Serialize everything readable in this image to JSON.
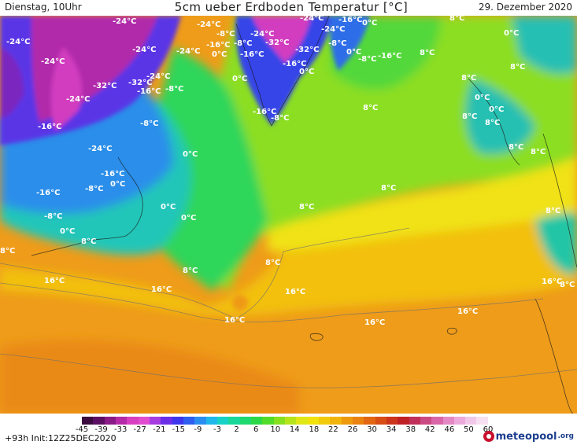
{
  "header": {
    "day_time": "Dienstag, 10Uhr",
    "title": "5cm ueber Erdboden Temperatur [°C]",
    "date": "29. Dezember 2020"
  },
  "map": {
    "labels": [
      {
        "id": "l1",
        "text": "-24°C"
      },
      {
        "id": "l2",
        "text": "-24°C"
      },
      {
        "id": "l3",
        "text": "-24°C"
      },
      {
        "id": "l4",
        "text": "-24°C"
      },
      {
        "id": "l5",
        "text": "-24°C"
      },
      {
        "id": "l6",
        "text": "-24°C"
      },
      {
        "id": "l7",
        "text": "-24°C"
      },
      {
        "id": "l8",
        "text": "-24°C"
      },
      {
        "id": "l9",
        "text": "-24°C"
      },
      {
        "id": "l10",
        "text": "-24°C"
      },
      {
        "id": "l11",
        "text": "-24°C"
      },
      {
        "id": "l12",
        "text": "-24°C"
      },
      {
        "id": "l13",
        "text": "-32°C"
      },
      {
        "id": "l14",
        "text": "-32°C"
      },
      {
        "id": "l15",
        "text": "-32°C"
      },
      {
        "id": "l16",
        "text": "-32°C"
      },
      {
        "id": "l17",
        "text": "-16°C"
      },
      {
        "id": "l18",
        "text": "-16°C"
      },
      {
        "id": "l19",
        "text": "-16°C"
      },
      {
        "id": "l20",
        "text": "-16°C"
      },
      {
        "id": "l21",
        "text": "-16°C"
      },
      {
        "id": "l22",
        "text": "-16°C"
      },
      {
        "id": "l23",
        "text": "-16°C"
      },
      {
        "id": "l24",
        "text": "-16°C"
      },
      {
        "id": "l25",
        "text": "-16°C"
      },
      {
        "id": "l26",
        "text": "-16°C"
      },
      {
        "id": "l27",
        "text": "-8°C"
      },
      {
        "id": "l28",
        "text": "-8°C"
      },
      {
        "id": "l29",
        "text": "-8°C"
      },
      {
        "id": "l30",
        "text": "-8°C"
      },
      {
        "id": "l31",
        "text": "-8°C"
      },
      {
        "id": "l32",
        "text": "-8°C"
      },
      {
        "id": "l33",
        "text": "-8°C"
      },
      {
        "id": "l34",
        "text": "-8°C"
      },
      {
        "id": "l35",
        "text": "-8°C"
      },
      {
        "id": "l36",
        "text": "0°C"
      },
      {
        "id": "l37",
        "text": "0°C"
      },
      {
        "id": "l38",
        "text": "0°C"
      },
      {
        "id": "l39",
        "text": "0°C"
      },
      {
        "id": "l40",
        "text": "0°C"
      },
      {
        "id": "l41",
        "text": "0°C"
      },
      {
        "id": "l42",
        "text": "0°C"
      },
      {
        "id": "l43",
        "text": "0°C"
      },
      {
        "id": "l44",
        "text": "0°C"
      },
      {
        "id": "l45",
        "text": "0°C"
      },
      {
        "id": "l46",
        "text": "0°C"
      },
      {
        "id": "l47",
        "text": "0°C"
      },
      {
        "id": "l48",
        "text": "0°C"
      },
      {
        "id": "l49",
        "text": "8°C"
      },
      {
        "id": "l50",
        "text": "8°C"
      },
      {
        "id": "l51",
        "text": "8°C"
      },
      {
        "id": "l52",
        "text": "8°C"
      },
      {
        "id": "l53",
        "text": "8°C"
      },
      {
        "id": "l54",
        "text": "8°C"
      },
      {
        "id": "l55",
        "text": "8°C"
      },
      {
        "id": "l56",
        "text": "8°C"
      },
      {
        "id": "l57",
        "text": "8°C"
      },
      {
        "id": "l58",
        "text": "8°C"
      },
      {
        "id": "l59",
        "text": "8°C"
      },
      {
        "id": "l60",
        "text": "8°C"
      },
      {
        "id": "l61",
        "text": "8°C"
      },
      {
        "id": "l62",
        "text": "8°C"
      },
      {
        "id": "l63",
        "text": "8°C"
      },
      {
        "id": "l64",
        "text": "8°C"
      },
      {
        "id": "l65",
        "text": "8°C"
      },
      {
        "id": "l66",
        "text": "16°C"
      },
      {
        "id": "l67",
        "text": "16°C"
      },
      {
        "id": "l68",
        "text": "16°C"
      },
      {
        "id": "l69",
        "text": "16°C"
      },
      {
        "id": "l70",
        "text": "16°C"
      },
      {
        "id": "l71",
        "text": "16°C"
      },
      {
        "id": "l72",
        "text": "16°C"
      }
    ]
  },
  "legend": {
    "ticks": [
      "-45",
      "-39",
      "-33",
      "-27",
      "-21",
      "-15",
      "-9",
      "-3",
      "2",
      "6",
      "10",
      "14",
      "18",
      "22",
      "26",
      "30",
      "34",
      "38",
      "42",
      "46",
      "50",
      "60"
    ],
    "colors": [
      "#3b0a3f",
      "#5b0f62",
      "#8a1a86",
      "#b52aa6",
      "#d83ec0",
      "#e04dcf",
      "#a53de0",
      "#6a2ee8",
      "#3d36ee",
      "#2d5ef0",
      "#2a8ef0",
      "#1fb8e8",
      "#18d2c8",
      "#18d89a",
      "#1ed870",
      "#2bd848",
      "#52dc2a",
      "#86e01e",
      "#b5e41a",
      "#dfe816",
      "#f2e20e",
      "#f2cc0c",
      "#f0b40a",
      "#ee9a0c",
      "#ea820f",
      "#e36612",
      "#d84c16",
      "#cc341c",
      "#bf2024",
      "#c0305a",
      "#cc4a84",
      "#d866a8",
      "#e488c6",
      "#ecaadc",
      "#f2c8ea",
      "#f7e0f2"
    ]
  },
  "footer": {
    "run_info": "+93h  Init:12Z25DEC2020",
    "logo_main": "meteopool",
    "logo_tld": ".org"
  }
}
